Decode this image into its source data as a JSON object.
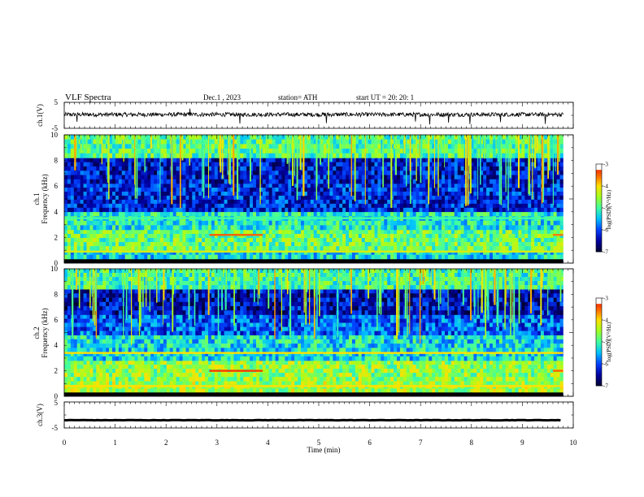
{
  "header": {
    "title": "VLF  Spectra",
    "date": "Dec.1  , 2023",
    "station": "station= ATH",
    "start": "start  UT  =   20: 20: 1"
  },
  "chart_data": [
    {
      "type": "line",
      "panel": "ch1-waveform",
      "ylabel": "ch.1(V)",
      "ylim": [
        -5,
        5
      ],
      "yticks": [
        "5",
        "-5"
      ],
      "xlim": [
        0,
        10
      ],
      "description_values": {
        "baseline_v": 0.3,
        "noise_amplitude_v": 1.0,
        "spikes": [
          {
            "t": 0.25,
            "v": -2.5
          },
          {
            "t": 2.47,
            "v": 2.6
          },
          {
            "t": 3.45,
            "v": -3.2
          },
          {
            "t": 5.15,
            "v": -3.0
          },
          {
            "t": 6.9,
            "v": -2.4
          },
          {
            "t": 7.18,
            "v": -3.5
          },
          {
            "t": 7.55,
            "v": -2.8
          },
          {
            "t": 7.97,
            "v": -3.4
          },
          {
            "t": 8.57,
            "v": -2.6
          },
          {
            "t": 9.45,
            "v": -3.3
          }
        ]
      }
    },
    {
      "type": "heatmap",
      "panel": "ch1-spectrogram",
      "ylabel_top": "ch.1",
      "ylabel": "Frequency  (kHz)",
      "ylim": [
        0,
        10
      ],
      "yticks": [
        "10",
        "8",
        "6",
        "4",
        "2",
        "0"
      ],
      "xlim": [
        0,
        9.8
      ],
      "colorbar": {
        "label": "log(PSD)(V²/Hz)",
        "range": [
          -7,
          -3
        ],
        "ticks": [
          "-3",
          "-4",
          "-5",
          "-6",
          "-7"
        ]
      },
      "bands_khz": [
        {
          "f0": 0.0,
          "f1": 0.3,
          "level": -6.3
        },
        {
          "f0": 0.3,
          "f1": 1.0,
          "level": -5.3
        },
        {
          "f0": 1.0,
          "f1": 2.6,
          "level": -4.8
        },
        {
          "f0": 2.6,
          "f1": 4.0,
          "level": -5.2
        },
        {
          "f0": 4.0,
          "f1": 6.2,
          "level": -6.2
        },
        {
          "f0": 6.2,
          "f1": 8.2,
          "level": -6.3
        },
        {
          "f0": 8.2,
          "f1": 10.0,
          "level": -4.9
        }
      ],
      "features": [
        {
          "kind": "line",
          "f_khz": 2.2,
          "t0": 2.85,
          "t1": 3.9,
          "level": -3.5
        },
        {
          "kind": "line",
          "f_khz": 2.2,
          "t0": 9.6,
          "t1": 9.8,
          "level": -3.6
        },
        {
          "kind": "line",
          "f_khz": 0.9,
          "t0": 0,
          "t1": 9.8,
          "level": -4.2
        },
        {
          "kind": "line",
          "f_khz": 3.5,
          "t0": 0,
          "t1": 9.8,
          "level": -5.0
        }
      ]
    },
    {
      "type": "heatmap",
      "panel": "ch2-spectrogram",
      "ylabel_top": "ch.2",
      "ylabel": "Frequency  (kHz)",
      "ylim": [
        0,
        10
      ],
      "yticks": [
        "10",
        "8",
        "6",
        "4",
        "2",
        "0"
      ],
      "xlim": [
        0,
        9.8
      ],
      "colorbar": {
        "label": "log(PSD)(V²/Hz)",
        "range": [
          -7,
          -3
        ],
        "ticks": [
          "-3",
          "-4",
          "-5",
          "-6",
          "-7"
        ]
      },
      "bands_khz": [
        {
          "f0": 0.0,
          "f1": 0.3,
          "level": -6.3
        },
        {
          "f0": 0.3,
          "f1": 1.2,
          "level": -4.5
        },
        {
          "f0": 1.2,
          "f1": 2.8,
          "level": -4.6
        },
        {
          "f0": 2.8,
          "f1": 4.8,
          "level": -5.3
        },
        {
          "f0": 4.8,
          "f1": 6.4,
          "level": -5.9
        },
        {
          "f0": 6.4,
          "f1": 8.4,
          "level": -6.4
        },
        {
          "f0": 8.4,
          "f1": 10.0,
          "level": -5.0
        }
      ],
      "features": [
        {
          "kind": "line",
          "f_khz": 2.0,
          "t0": 2.85,
          "t1": 3.9,
          "level": -3.3
        },
        {
          "kind": "line",
          "f_khz": 2.0,
          "t0": 9.6,
          "t1": 9.8,
          "level": -3.5
        },
        {
          "kind": "line",
          "f_khz": 3.4,
          "t0": 0,
          "t1": 9.8,
          "level": -4.0
        },
        {
          "kind": "line",
          "f_khz": 0.8,
          "t0": 0,
          "t1": 9.8,
          "level": -4.0
        }
      ]
    },
    {
      "type": "line",
      "panel": "ch3-waveform",
      "ylabel": "ch.3(V)",
      "ylim": [
        -5,
        5
      ],
      "yticks": [
        "5",
        "-5"
      ],
      "xlim": [
        0,
        10
      ],
      "description_values": {
        "baseline_v": -2.0,
        "noise_amplitude_v": 0.15
      }
    }
  ],
  "x_axis": {
    "label": "Time  (min)",
    "ticks": [
      "0",
      "1",
      "2",
      "3",
      "4",
      "5",
      "6",
      "7",
      "8",
      "9",
      "10"
    ],
    "range": [
      0,
      10
    ]
  },
  "colors": {
    "colormap": [
      "#000030",
      "#0000a0",
      "#0040ff",
      "#00c0ff",
      "#40ffa0",
      "#a0ff20",
      "#ffe000",
      "#ff6000",
      "#e00000",
      "#ffffff"
    ],
    "waveform": "#000000"
  }
}
